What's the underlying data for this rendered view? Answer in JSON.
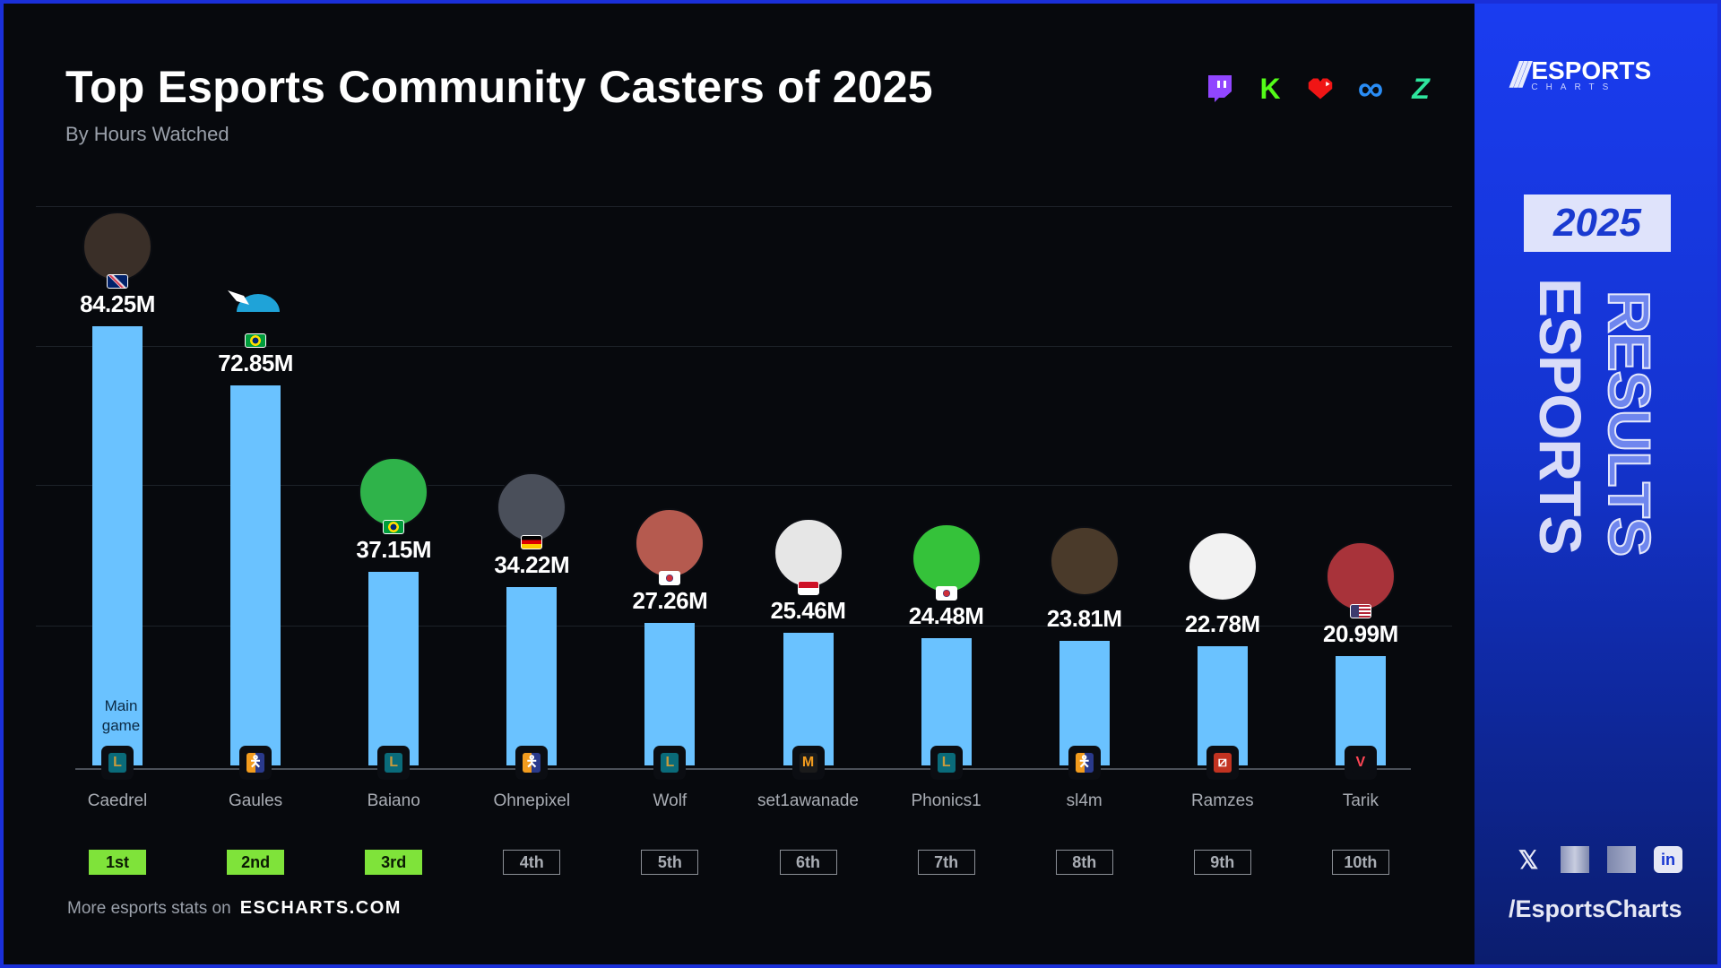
{
  "header": {
    "title": "Top Esports Community Casters of 2025",
    "subtitle": "By Hours Watched"
  },
  "platforms": [
    "twitch-icon",
    "kick-icon",
    "vk-play-live-icon",
    "infinity-platform-icon",
    "zoom-z-icon"
  ],
  "chart_data": {
    "type": "bar",
    "title": "Top Esports Community Casters of 2025",
    "subtitle": "By Hours Watched",
    "categories": [
      "Caedrel",
      "Gaules",
      "Baiano",
      "Ohnepixel",
      "Wolf",
      "set1awanade",
      "Phonics1",
      "sl4m",
      "Ramzes",
      "Tarik"
    ],
    "values": [
      84.25,
      72.85,
      37.15,
      34.22,
      27.26,
      25.46,
      24.48,
      23.81,
      22.78,
      20.99
    ],
    "value_labels": [
      "84.25M",
      "72.85M",
      "37.15M",
      "34.22M",
      "27.26M",
      "25.46M",
      "24.48M",
      "23.81M",
      "22.78M",
      "20.99M"
    ],
    "ranks": [
      "1st",
      "2nd",
      "3rd",
      "4th",
      "5th",
      "6th",
      "7th",
      "8th",
      "9th",
      "10th"
    ],
    "main_games": [
      "League of Legends",
      "Counter-Strike",
      "League of Legends",
      "Counter-Strike",
      "League of Legends",
      "Mobile Legends",
      "League of Legends",
      "Counter-Strike",
      "Dota 2",
      "Valorant"
    ],
    "flags": [
      "gb",
      "br",
      "br",
      "de",
      "kr",
      "id",
      "kr",
      "",
      "",
      "us"
    ],
    "main_game_label": "Main game",
    "grid": true,
    "bar_color": "#6ac2ff",
    "top3_color": "#7fe33a"
  },
  "footer": {
    "text": "More esports stats on",
    "site": "ESCHARTS.COM"
  },
  "sidebar": {
    "logo_word": "ESPORTS",
    "logo_sub": "CHARTS",
    "year": "2025",
    "vertical_1": "ESPORTS",
    "vertical_2": "RESULTS",
    "social": [
      "x-icon",
      "blurred-icon",
      "blurred-icon",
      "linkedin-icon"
    ],
    "handle": "/EsportsCharts"
  }
}
